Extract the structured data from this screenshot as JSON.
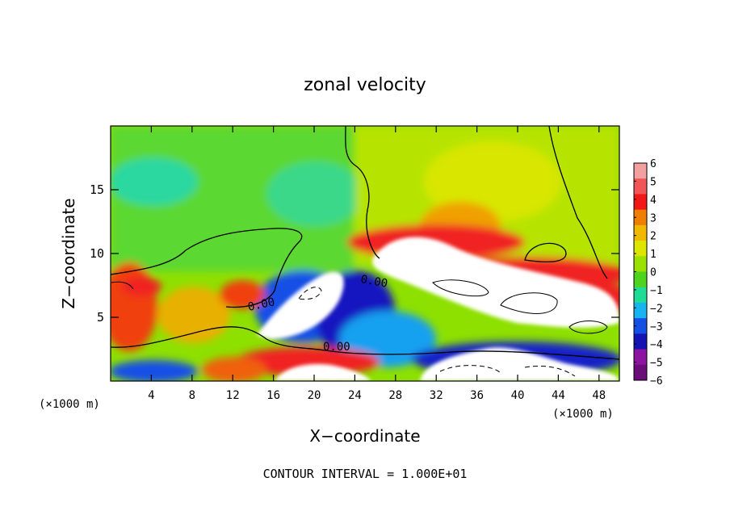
{
  "chart_data": {
    "type": "heatmap",
    "title": "zonal velocity",
    "xlabel": "X−coordinate",
    "ylabel": "Z−coordinate",
    "x_unit_left": "(×1000 m)",
    "x_unit_right": "(×1000 m)",
    "xlim": [
      0,
      50
    ],
    "ylim": [
      0,
      20
    ],
    "x_ticks": [
      4,
      8,
      12,
      16,
      20,
      24,
      28,
      32,
      36,
      40,
      44,
      48
    ],
    "y_ticks": [
      5,
      10,
      15
    ],
    "colorbar": {
      "levels": [
        6,
        5,
        4,
        3,
        2,
        1,
        0,
        -1,
        -2,
        -3,
        -4,
        -5,
        -6
      ],
      "labels": [
        "6",
        "5",
        "4",
        "3",
        "2",
        "1",
        "0",
        "−1",
        "−2",
        "−3",
        "−4",
        "−5",
        "−6"
      ],
      "colors": [
        "#f2a0a0",
        "#f25555",
        "#f01818",
        "#f07e00",
        "#f0b800",
        "#dce600",
        "#9ae000",
        "#4ed41c",
        "#1edc96",
        "#18b4f0",
        "#1450e6",
        "#1414b4",
        "#8c14a0",
        "#6a0c7a"
      ]
    },
    "contour_labels": [
      "0.00",
      "0.00",
      "0.00"
    ],
    "footer": "CONTOUR INTERVAL = 1.000E+01"
  }
}
